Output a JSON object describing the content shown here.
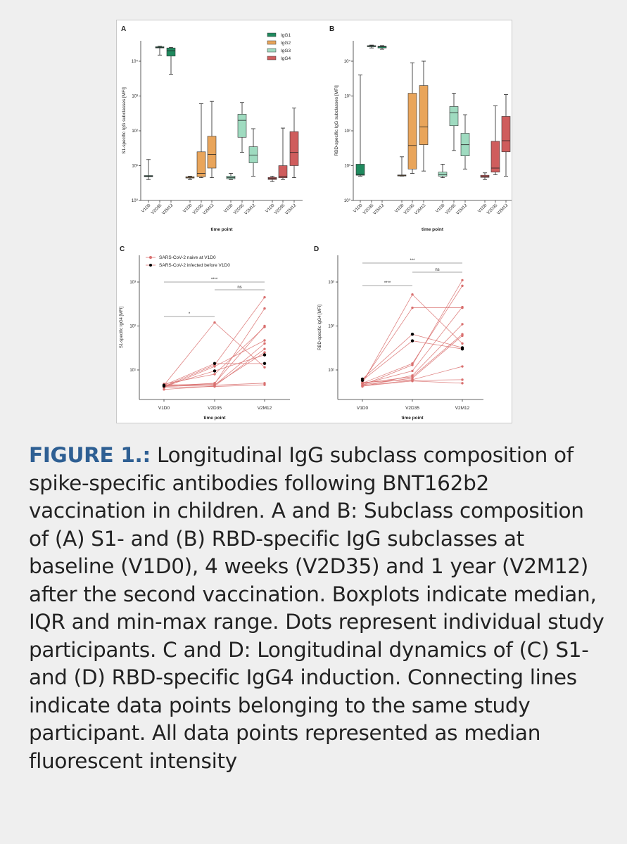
{
  "caption": {
    "label": "FIGURE 1.:",
    "text": " Longitudinal IgG subclass composition of spike-specific antibodies following BNT162b2 vaccination in children. A and B: Subclass composition of (A) S1- and (B) RBD-specific IgG subclasses at baseline (V1D0), 4 weeks (V2D35) and 1 year (V2M12) after the second vaccination. Boxplots indicate median, IQR and min-max range. Dots represent individual study participants. C and D: Longitudinal dynamics of (C) S1- and (D) RBD-specific IgG4 induction. Connecting lines indicate data points belonging to the same study participant. All data points represented as median fluorescent intensity"
  },
  "colors": {
    "caption_label": "#2e5f93",
    "IgG1": "#1f8a5e",
    "IgG2": "#e9a55b",
    "IgG3": "#9fdbc0",
    "IgG4": "#cf5d5d",
    "naive": "#d9706f",
    "infected": "#000000"
  },
  "chart_data": [
    {
      "panel": "A",
      "type": "box",
      "yscale": "log",
      "ylim": [
        1,
        40000
      ],
      "ylabel": "S1-specific IgG subclasses [MFI]",
      "xlabel": "time point",
      "yticks": [
        "10⁰",
        "10¹",
        "10²",
        "10³",
        "10⁴"
      ],
      "categories": [
        "V1D0",
        "V2D35",
        "V2M12"
      ],
      "legend": {
        "placement": "top-right",
        "entries": [
          "IgG1",
          "IgG2",
          "IgG3",
          "IgG4"
        ]
      },
      "groups": [
        {
          "name": "IgG1",
          "boxes": [
            [
              4,
              4.8,
              5,
              5.2,
              15
            ],
            [
              15000,
              24000,
              25000,
              26000,
              27000
            ],
            [
              4200,
              14000,
              20000,
              24000,
              25000
            ]
          ]
        },
        {
          "name": "IgG2",
          "boxes": [
            [
              4,
              4.4,
              4.6,
              4.8,
              5
            ],
            [
              4.5,
              4.8,
              6,
              25,
              600
            ],
            [
              4.5,
              8.5,
              21,
              70,
              700
            ]
          ]
        },
        {
          "name": "IgG3",
          "boxes": [
            [
              4,
              4.2,
              4.5,
              5,
              6
            ],
            [
              24,
              65,
              200,
              300,
              650
            ],
            [
              5,
              12,
              20,
              35,
              115
            ]
          ]
        },
        {
          "name": "IgG4",
          "boxes": [
            [
              3.5,
              4,
              4.3,
              4.6,
              5
            ],
            [
              4,
              4.5,
              5,
              10,
              120
            ],
            [
              4.5,
              10,
              24,
              95,
              450
            ]
          ]
        }
      ]
    },
    {
      "panel": "B",
      "type": "box",
      "yscale": "log",
      "ylim": [
        1,
        40000
      ],
      "ylabel": "RBD-specific IgG subclasses [MFI]",
      "xlabel": "time point",
      "yticks": [
        "10⁰",
        "10¹",
        "10²",
        "10³",
        "10⁴"
      ],
      "categories": [
        "V1D0",
        "V2D35",
        "V2M12"
      ],
      "groups": [
        {
          "name": "IgG1",
          "boxes": [
            [
              5,
              5.3,
              5.6,
              11,
              4000
            ],
            [
              24000,
              26000,
              27000,
              28000,
              29000
            ],
            [
              22000,
              24000,
              26000,
              27000,
              28000
            ]
          ]
        },
        {
          "name": "IgG2",
          "boxes": [
            [
              5,
              5.1,
              5.2,
              5.4,
              18
            ],
            [
              6,
              8,
              38,
              1200,
              9000
            ],
            [
              7,
              40,
              130,
              2000,
              10000
            ]
          ]
        },
        {
          "name": "IgG3",
          "boxes": [
            [
              4.5,
              5,
              5.5,
              6.5,
              11
            ],
            [
              27,
              140,
              330,
              500,
              1200
            ],
            [
              8,
              19,
              40,
              85,
              290
            ]
          ]
        },
        {
          "name": "IgG4",
          "boxes": [
            [
              4,
              4.6,
              5,
              5.3,
              6.2
            ],
            [
              5.5,
              6.5,
              8.5,
              50,
              520
            ],
            [
              5,
              25,
              52,
              260,
              1100
            ]
          ]
        }
      ]
    },
    {
      "panel": "C",
      "type": "line",
      "yscale": "log",
      "ylim": [
        2,
        4000
      ],
      "ylabel": "S1-specific IgG4 [MFI]",
      "xlabel": "time point",
      "yticks": [
        "10¹",
        "10²",
        "10³"
      ],
      "categories": [
        "V1D0",
        "V2D35",
        "V2M12"
      ],
      "legend": {
        "placement": "top-left",
        "entries": [
          "SARS-CoV-2 naive at V1D0",
          "SARS-CoV-2 infected before V1D0"
        ]
      },
      "participants": [
        {
          "group": "naive",
          "values": [
            4.5,
            120,
            11.5
          ]
        },
        {
          "group": "naive",
          "values": [
            4.2,
            13,
            450
          ]
        },
        {
          "group": "naive",
          "values": [
            4.5,
            4.8,
            250
          ]
        },
        {
          "group": "naive",
          "values": [
            4.3,
            5,
            100
          ]
        },
        {
          "group": "naive",
          "values": [
            4.8,
            8,
            95
          ]
        },
        {
          "group": "naive",
          "values": [
            4,
            12,
            47
          ]
        },
        {
          "group": "naive",
          "values": [
            4.5,
            4.5,
            40
          ]
        },
        {
          "group": "naive",
          "values": [
            3.6,
            4.3,
            30
          ]
        },
        {
          "group": "naive",
          "values": [
            4.2,
            4.6,
            25
          ]
        },
        {
          "group": "naive",
          "values": [
            4.6,
            4.5,
            5
          ]
        },
        {
          "group": "naive",
          "values": [
            4,
            4.2,
            4.6
          ]
        },
        {
          "group": "infected",
          "values": [
            4.5,
            14,
            14
          ]
        },
        {
          "group": "infected",
          "values": [
            4.3,
            9.5,
            22
          ]
        }
      ],
      "significance": [
        {
          "from": 0,
          "to": 1,
          "label": "*"
        },
        {
          "from": 0,
          "to": 2,
          "label": "****"
        },
        {
          "from": 1,
          "to": 2,
          "label": "ns"
        }
      ]
    },
    {
      "panel": "D",
      "type": "line",
      "yscale": "log",
      "ylim": [
        2,
        4000
      ],
      "ylabel": "RBD-specific IgG4 [MFI]",
      "xlabel": "time point",
      "yticks": [
        "10¹",
        "10²",
        "10³"
      ],
      "categories": [
        "V1D0",
        "V2D35",
        "V2M12"
      ],
      "participants": [
        {
          "group": "naive",
          "values": [
            5,
            520,
            40
          ]
        },
        {
          "group": "naive",
          "values": [
            5.5,
            260,
            260
          ]
        },
        {
          "group": "naive",
          "values": [
            4.5,
            13,
            1100
          ]
        },
        {
          "group": "naive",
          "values": [
            5,
            14,
            820
          ]
        },
        {
          "group": "naive",
          "values": [
            4.8,
            9.5,
            270
          ]
        },
        {
          "group": "naive",
          "values": [
            4.2,
            7.5,
            110
          ]
        },
        {
          "group": "naive",
          "values": [
            5,
            7,
            65
          ]
        },
        {
          "group": "naive",
          "values": [
            4.6,
            6.5,
            60
          ]
        },
        {
          "group": "naive",
          "values": [
            5.2,
            6,
            12
          ]
        },
        {
          "group": "naive",
          "values": [
            4.4,
            5.8,
            6
          ]
        },
        {
          "group": "naive",
          "values": [
            4.3,
            5.6,
            5
          ]
        },
        {
          "group": "infected",
          "values": [
            6.2,
            65,
            32
          ]
        },
        {
          "group": "infected",
          "values": [
            5.8,
            46,
            30
          ]
        }
      ],
      "significance": [
        {
          "from": 0,
          "to": 1,
          "label": "****"
        },
        {
          "from": 0,
          "to": 2,
          "label": "***"
        },
        {
          "from": 1,
          "to": 2,
          "label": "ns"
        }
      ]
    }
  ]
}
